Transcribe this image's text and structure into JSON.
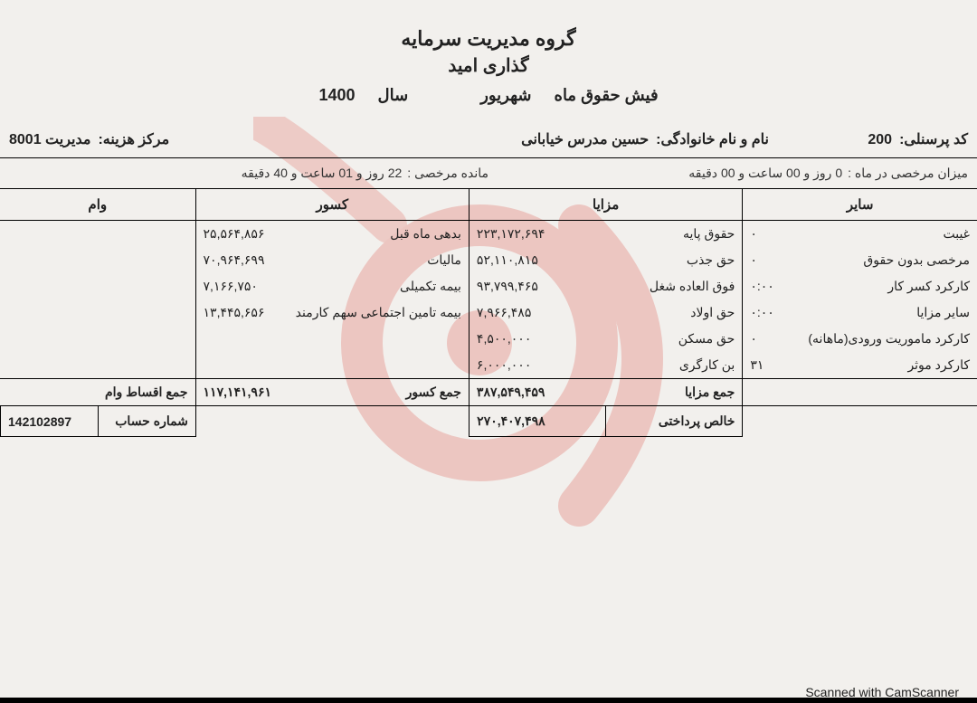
{
  "header": {
    "line1": "گروه مدیریت سرمایه",
    "line2": "گذاری امید"
  },
  "title_row": {
    "label": "فیش حقوق ماه",
    "month": "شهریور",
    "year_label": "سال",
    "year": "1400"
  },
  "info": {
    "code_label": "کد پرسنلی:",
    "code": "200",
    "name_label": "نام و نام خانوادگی:",
    "name": "حسین مدرس خیابانی",
    "cost_label": "مرکز هزینه:",
    "cost": "مدیریت 8001"
  },
  "leave": {
    "month_label": "میزان مرخصی در ماه :",
    "month_val": "0 روز و 00 ساعت و 00 دقیقه",
    "remain_label": "مانده مرخصی :",
    "remain_val": "22 روز و 01 ساعت و 40 دقیقه"
  },
  "cols": {
    "other": "سایر",
    "benefits": "مزایا",
    "deductions": "کسور",
    "loan": "وام"
  },
  "other_rows": [
    {
      "label": "غیبت",
      "value": "۰"
    },
    {
      "label": "مرخصی بدون حقوق",
      "value": "۰"
    },
    {
      "label": "کارکرد کسر کار",
      "value": "۰:۰۰"
    },
    {
      "label": "سایر مزایا",
      "value": "۰:۰۰"
    },
    {
      "label": "کارکرد ماموریت ورودی(ماهانه)",
      "value": "۰"
    },
    {
      "label": "کارکرد موثر",
      "value": "۳۱"
    }
  ],
  "benefit_rows": [
    {
      "label": "حقوق پایه",
      "value": "۲۲۳,۱۷۲,۶۹۴"
    },
    {
      "label": "حق جذب",
      "value": "۵۲,۱۱۰,۸۱۵"
    },
    {
      "label": "فوق العاده شغل",
      "value": "۹۳,۷۹۹,۴۶۵"
    },
    {
      "label": "حق اولاد",
      "value": "۷,۹۶۶,۴۸۵"
    },
    {
      "label": "حق مسکن",
      "value": "۴,۵۰۰,۰۰۰"
    },
    {
      "label": "بن کارگری",
      "value": "۶,۰۰۰,۰۰۰"
    }
  ],
  "deduction_rows": [
    {
      "label": "بدهی ماه قبل",
      "value": "۲۵,۵۶۴,۸۵۶"
    },
    {
      "label": "مالیات",
      "value": "۷۰,۹۶۴,۶۹۹"
    },
    {
      "label": "بیمه تکمیلی",
      "value": "۷,۱۶۶,۷۵۰"
    },
    {
      "label": "بیمه تامین اجتماعی سهم کارمند",
      "value": "۱۳,۴۴۵,۶۵۶"
    }
  ],
  "totals": {
    "benefits_label": "جمع مزایا",
    "benefits_val": "۳۸۷,۵۴۹,۴۵۹",
    "deductions_label": "جمع کسور",
    "deductions_val": "۱۱۷,۱۴۱,۹۶۱",
    "loan_label": "جمع اقساط وام",
    "loan_val": ""
  },
  "footer": {
    "net_label": "خالص پرداختی",
    "net_val": "۲۷۰,۴۰۷,۴۹۸",
    "acct_label": "شماره حساب",
    "acct_val": "142102897"
  },
  "scan": "Scanned with CamScanner",
  "colors": {
    "watermark": "#d9362a"
  }
}
